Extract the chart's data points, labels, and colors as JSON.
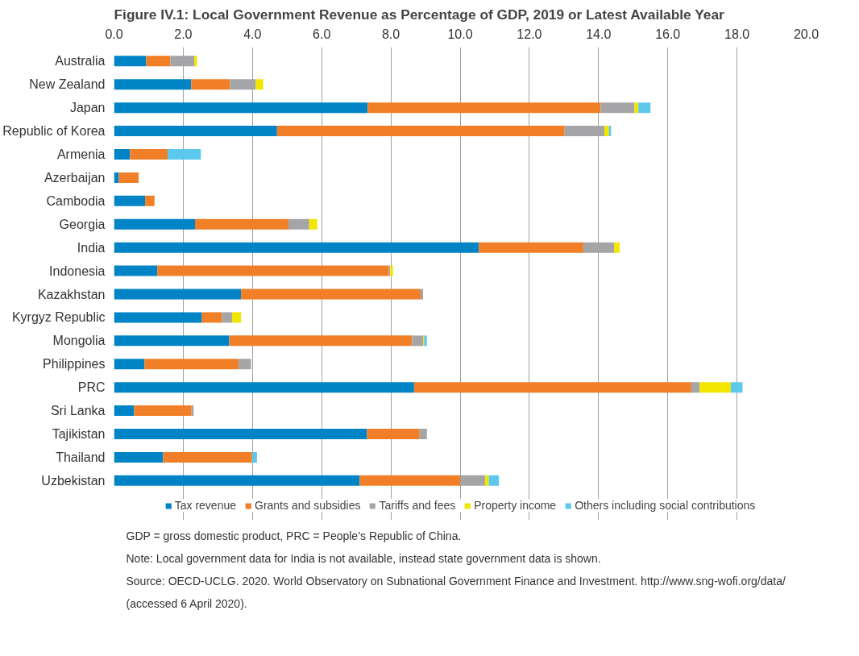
{
  "chart_data": {
    "type": "bar",
    "orientation": "horizontal",
    "stacked": true,
    "title": "Figure IV.1: Local Government Revenue as Percentage of GDP, 2019 or Latest Available Year",
    "categories": [
      "Australia",
      "New Zealand",
      "Japan",
      "Republic of Korea",
      "Armenia",
      "Azerbaijan",
      "Cambodia",
      "Georgia",
      "India",
      "Indonesia",
      "Kazakhstan",
      "Kyrgyz Republic",
      "Mongolia",
      "Philippines",
      "PRC",
      "Sri Lanka",
      "Tajikistan",
      "Thailand",
      "Uzbekistan"
    ],
    "series": [
      {
        "name": "Tax revenue",
        "color": "#0084c6",
        "values": [
          0.93,
          2.23,
          7.33,
          4.71,
          0.46,
          0.14,
          0.9,
          2.34,
          10.54,
          1.25,
          3.67,
          2.54,
          3.33,
          0.88,
          8.67,
          0.58,
          7.31,
          1.42,
          7.1
        ]
      },
      {
        "name": "Grants and subsidies",
        "color": "#f07f27",
        "values": [
          0.7,
          1.12,
          6.73,
          8.31,
          1.09,
          0.57,
          0.27,
          2.7,
          3.02,
          6.69,
          5.19,
          0.58,
          5.28,
          2.72,
          8.01,
          1.66,
          1.52,
          2.57,
          2.91
        ]
      },
      {
        "name": "Tariffs and fees",
        "color": "#a5a5a7",
        "values": [
          0.69,
          0.74,
          0.98,
          1.15,
          null,
          null,
          null,
          0.6,
          0.89,
          0.04,
          0.07,
          0.29,
          0.32,
          0.36,
          0.24,
          0.06,
          0.21,
          null,
          0.71
        ]
      },
      {
        "name": "Property income",
        "color": "#f2e500",
        "values": [
          0.08,
          0.22,
          0.11,
          0.13,
          null,
          null,
          null,
          0.23,
          0.16,
          0.08,
          null,
          0.26,
          0.03,
          null,
          0.9,
          null,
          null,
          null,
          0.11
        ]
      },
      {
        "name": "Others including social contributions",
        "color": "#5bc8ec",
        "values": [
          null,
          null,
          0.35,
          0.06,
          0.96,
          null,
          null,
          null,
          null,
          null,
          null,
          null,
          0.08,
          null,
          0.34,
          null,
          null,
          0.14,
          0.29
        ]
      }
    ],
    "xlim": [
      0,
      20
    ],
    "xticks": [
      {
        "value": 0,
        "label": "0.0"
      },
      {
        "value": 2,
        "label": "2.0"
      },
      {
        "value": 4,
        "label": "4.0"
      },
      {
        "value": 6,
        "label": "6.0"
      },
      {
        "value": 8,
        "label": "8.0"
      },
      {
        "value": 10,
        "label": "10.0"
      },
      {
        "value": 12,
        "label": "12.0"
      },
      {
        "value": 14,
        "label": "14.0"
      },
      {
        "value": 16,
        "label": "16.0"
      },
      {
        "value": 18,
        "label": "18.0"
      },
      {
        "value": 20,
        "label": "20.0"
      }
    ],
    "grid": "x",
    "legend": "bottom",
    "annotations": [
      "GDP = gross domestic product, PRC = People’s Republic of China.",
      "Note: Local government data for India is not available, instead state government data is shown.",
      "Source: OECD-UCLG. 2020. World Observatory on Subnational Government Finance and Investment. http://www.sng-wofi.org/data/",
      "(accessed 6 April 2020)."
    ]
  }
}
